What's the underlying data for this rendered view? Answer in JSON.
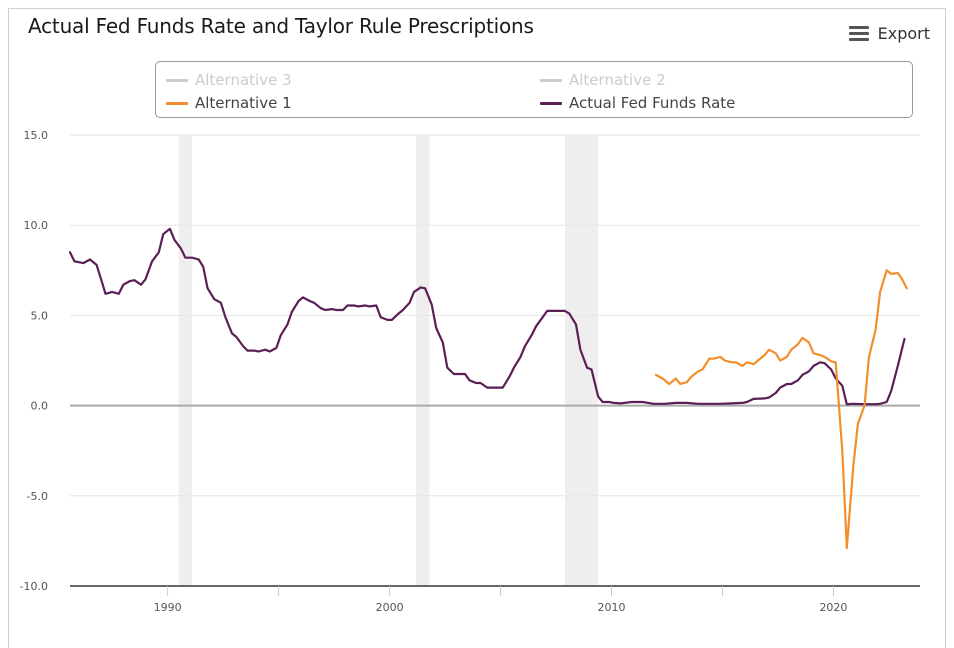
{
  "header": {
    "title": "Actual Fed Funds Rate and Taylor Rule Prescriptions",
    "export_label": "Export"
  },
  "colors": {
    "alt1": "#f28e2b",
    "actual": "#5b1f55",
    "hidden": "#cccccc",
    "recession": "#eeeeee",
    "grid": "#e6e6e6",
    "zero": "#aaaaaa"
  },
  "chart_data": {
    "type": "line",
    "title": "Actual Fed Funds Rate and Taylor Rule Prescriptions",
    "xlabel": "",
    "ylabel": "",
    "xlim": [
      1985.6,
      2023.9
    ],
    "ylim": [
      -10,
      15
    ],
    "yticks": [
      -10,
      -5,
      0,
      5,
      10,
      15
    ],
    "ytick_labels": [
      "-10.0",
      "-5.0",
      "0.0",
      "5.0",
      "10.0",
      "15.0"
    ],
    "xticks": [
      1990,
      2000,
      2010,
      2020
    ],
    "xtick_labels": [
      "1990",
      "2000",
      "2010",
      "2020"
    ],
    "minor_xticks": [
      1985,
      1995,
      2005,
      2015
    ],
    "grid": true,
    "legend_position": "top",
    "legend": [
      {
        "name": "Alternative 3",
        "visible": false
      },
      {
        "name": "Alternative 2",
        "visible": false
      },
      {
        "name": "Alternative 1",
        "visible": true
      },
      {
        "name": "Actual Fed Funds Rate",
        "visible": true
      }
    ],
    "recessions": [
      [
        1990.5,
        1991.1
      ],
      [
        2001.2,
        2001.8
      ],
      [
        2007.9,
        2009.4
      ]
    ],
    "series": [
      {
        "name": "Actual Fed Funds Rate",
        "points": [
          [
            1985.6,
            8.5
          ],
          [
            1985.8,
            8.0
          ],
          [
            1986.2,
            7.9
          ],
          [
            1986.5,
            8.1
          ],
          [
            1986.8,
            7.8
          ],
          [
            1987.0,
            7.0
          ],
          [
            1987.2,
            6.2
          ],
          [
            1987.5,
            6.3
          ],
          [
            1987.8,
            6.2
          ],
          [
            1988.0,
            6.7
          ],
          [
            1988.3,
            6.9
          ],
          [
            1988.5,
            6.95
          ],
          [
            1988.8,
            6.7
          ],
          [
            1989.0,
            7.0
          ],
          [
            1989.3,
            8.0
          ],
          [
            1989.6,
            8.5
          ],
          [
            1989.8,
            9.5
          ],
          [
            1990.1,
            9.8
          ],
          [
            1990.3,
            9.2
          ],
          [
            1990.6,
            8.7
          ],
          [
            1990.8,
            8.2
          ],
          [
            1991.1,
            8.2
          ],
          [
            1991.4,
            8.1
          ],
          [
            1991.6,
            7.7
          ],
          [
            1991.8,
            6.5
          ],
          [
            1992.1,
            5.9
          ],
          [
            1992.4,
            5.7
          ],
          [
            1992.6,
            4.9
          ],
          [
            1992.9,
            4.0
          ],
          [
            1993.1,
            3.8
          ],
          [
            1993.4,
            3.3
          ],
          [
            1993.6,
            3.05
          ],
          [
            1993.9,
            3.05
          ],
          [
            1994.1,
            3.0
          ],
          [
            1994.4,
            3.1
          ],
          [
            1994.6,
            3.0
          ],
          [
            1994.9,
            3.2
          ],
          [
            1995.1,
            3.9
          ],
          [
            1995.4,
            4.5
          ],
          [
            1995.6,
            5.2
          ],
          [
            1995.9,
            5.8
          ],
          [
            1996.1,
            6.0
          ],
          [
            1996.4,
            5.8
          ],
          [
            1996.6,
            5.7
          ],
          [
            1996.9,
            5.4
          ],
          [
            1997.1,
            5.3
          ],
          [
            1997.4,
            5.35
          ],
          [
            1997.6,
            5.3
          ],
          [
            1997.9,
            5.3
          ],
          [
            1998.1,
            5.55
          ],
          [
            1998.4,
            5.55
          ],
          [
            1998.6,
            5.5
          ],
          [
            1998.9,
            5.55
          ],
          [
            1999.1,
            5.5
          ],
          [
            1999.4,
            5.55
          ],
          [
            1999.6,
            4.9
          ],
          [
            1999.9,
            4.75
          ],
          [
            2000.1,
            4.75
          ],
          [
            2000.4,
            5.1
          ],
          [
            2000.6,
            5.3
          ],
          [
            2000.9,
            5.7
          ],
          [
            2001.1,
            6.3
          ],
          [
            2001.4,
            6.55
          ],
          [
            2001.6,
            6.5
          ],
          [
            2001.9,
            5.6
          ],
          [
            2002.1,
            4.3
          ],
          [
            2002.4,
            3.5
          ],
          [
            2002.6,
            2.1
          ],
          [
            2002.9,
            1.75
          ],
          [
            2003.1,
            1.75
          ],
          [
            2003.4,
            1.75
          ],
          [
            2003.6,
            1.4
          ],
          [
            2003.9,
            1.25
          ],
          [
            2004.1,
            1.25
          ],
          [
            2004.4,
            1.0
          ],
          [
            2004.6,
            1.0
          ],
          [
            2004.9,
            1.0
          ],
          [
            2005.1,
            1.0
          ],
          [
            2005.4,
            1.6
          ],
          [
            2005.6,
            2.1
          ],
          [
            2005.9,
            2.7
          ],
          [
            2006.1,
            3.3
          ],
          [
            2006.4,
            3.9
          ],
          [
            2006.6,
            4.4
          ],
          [
            2006.9,
            4.9
          ],
          [
            2007.1,
            5.25
          ],
          [
            2007.4,
            5.25
          ],
          [
            2007.6,
            5.25
          ],
          [
            2007.9,
            5.25
          ],
          [
            2008.1,
            5.1
          ],
          [
            2008.4,
            4.5
          ],
          [
            2008.6,
            3.1
          ],
          [
            2008.9,
            2.1
          ],
          [
            2009.1,
            2.0
          ],
          [
            2009.4,
            0.5
          ],
          [
            2009.6,
            0.2
          ],
          [
            2009.9,
            0.2
          ],
          [
            2010.1,
            0.15
          ],
          [
            2010.4,
            0.12
          ],
          [
            2010.6,
            0.15
          ],
          [
            2010.9,
            0.2
          ],
          [
            2011.4,
            0.2
          ],
          [
            2011.9,
            0.1
          ],
          [
            2012.4,
            0.1
          ],
          [
            2012.9,
            0.15
          ],
          [
            2013.4,
            0.15
          ],
          [
            2013.9,
            0.1
          ],
          [
            2014.4,
            0.1
          ],
          [
            2014.9,
            0.1
          ],
          [
            2015.4,
            0.12
          ],
          [
            2015.9,
            0.15
          ],
          [
            2016.1,
            0.2
          ],
          [
            2016.4,
            0.37
          ],
          [
            2016.9,
            0.4
          ],
          [
            2017.1,
            0.45
          ],
          [
            2017.4,
            0.7
          ],
          [
            2017.6,
            1.0
          ],
          [
            2017.9,
            1.2
          ],
          [
            2018.1,
            1.2
          ],
          [
            2018.4,
            1.4
          ],
          [
            2018.6,
            1.7
          ],
          [
            2018.9,
            1.9
          ],
          [
            2019.1,
            2.2
          ],
          [
            2019.4,
            2.4
          ],
          [
            2019.6,
            2.35
          ],
          [
            2019.9,
            2.0
          ],
          [
            2020.1,
            1.5
          ],
          [
            2020.4,
            1.1
          ],
          [
            2020.6,
            0.08
          ],
          [
            2020.9,
            0.1
          ],
          [
            2021.4,
            0.08
          ],
          [
            2021.9,
            0.08
          ],
          [
            2022.1,
            0.1
          ],
          [
            2022.4,
            0.2
          ],
          [
            2022.6,
            0.8
          ],
          [
            2022.9,
            2.2
          ],
          [
            2023.2,
            3.7
          ]
        ]
      },
      {
        "name": "Alternative 1",
        "points": [
          [
            2012.0,
            1.7
          ],
          [
            2012.3,
            1.5
          ],
          [
            2012.6,
            1.2
          ],
          [
            2012.9,
            1.5
          ],
          [
            2013.1,
            1.2
          ],
          [
            2013.4,
            1.3
          ],
          [
            2013.6,
            1.6
          ],
          [
            2013.9,
            1.9
          ],
          [
            2014.1,
            2.0
          ],
          [
            2014.4,
            2.6
          ],
          [
            2014.6,
            2.6
          ],
          [
            2014.9,
            2.7
          ],
          [
            2015.1,
            2.5
          ],
          [
            2015.4,
            2.4
          ],
          [
            2015.6,
            2.4
          ],
          [
            2015.9,
            2.2
          ],
          [
            2016.1,
            2.4
          ],
          [
            2016.4,
            2.3
          ],
          [
            2016.6,
            2.5
          ],
          [
            2016.9,
            2.8
          ],
          [
            2017.1,
            3.1
          ],
          [
            2017.4,
            2.9
          ],
          [
            2017.6,
            2.5
          ],
          [
            2017.9,
            2.7
          ],
          [
            2018.1,
            3.1
          ],
          [
            2018.4,
            3.4
          ],
          [
            2018.6,
            3.75
          ],
          [
            2018.9,
            3.5
          ],
          [
            2019.1,
            2.9
          ],
          [
            2019.4,
            2.8
          ],
          [
            2019.6,
            2.7
          ],
          [
            2019.9,
            2.45
          ],
          [
            2020.1,
            2.4
          ],
          [
            2020.4,
            -2.5
          ],
          [
            2020.6,
            -7.9
          ],
          [
            2020.9,
            -3.3
          ],
          [
            2021.1,
            -1.0
          ],
          [
            2021.4,
            0.0
          ],
          [
            2021.6,
            2.7
          ],
          [
            2021.9,
            4.2
          ],
          [
            2022.1,
            6.3
          ],
          [
            2022.4,
            7.5
          ],
          [
            2022.6,
            7.3
          ],
          [
            2022.9,
            7.35
          ],
          [
            2023.1,
            7.0
          ],
          [
            2023.3,
            6.5
          ]
        ]
      }
    ]
  }
}
